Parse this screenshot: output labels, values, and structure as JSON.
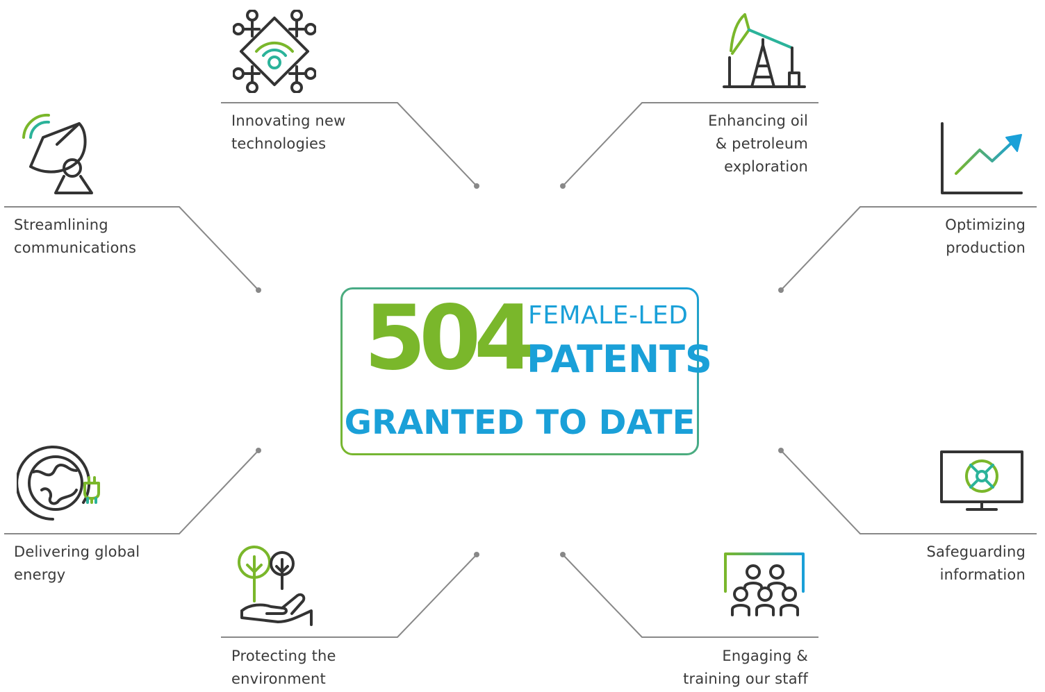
{
  "colors": {
    "green": "#7ab72b",
    "teal": "#2bb39a",
    "blue": "#1aa0d8",
    "line": "#888888",
    "icon": "#333333"
  },
  "center": {
    "number": "504",
    "line1": "FEMALE-LED",
    "line2": "PATENTS",
    "bottom": "GRANTED TO DATE"
  },
  "items": {
    "innovating": {
      "line1": "Innovating new",
      "line2": "technologies",
      "icon": "chip-wifi-icon"
    },
    "enhancing": {
      "line1": "Enhancing oil",
      "line2": "& petroleum",
      "line3": "exploration",
      "icon": "oil-pump-icon"
    },
    "streamlining": {
      "line1": "Streamlining",
      "line2": "communications",
      "icon": "satellite-dish-icon"
    },
    "optimizing": {
      "line1": "Optimizing",
      "line2": "production",
      "icon": "growth-chart-icon"
    },
    "delivering": {
      "line1": "Delivering global",
      "line2": "energy",
      "icon": "globe-plug-icon"
    },
    "safeguarding": {
      "line1": "Safeguarding",
      "line2": "information",
      "icon": "monitor-shield-icon"
    },
    "protecting": {
      "line1": "Protecting the",
      "line2": "environment",
      "icon": "hand-trees-icon"
    },
    "engaging": {
      "line1": "Engaging &",
      "line2": "training our staff",
      "icon": "training-group-icon"
    }
  }
}
